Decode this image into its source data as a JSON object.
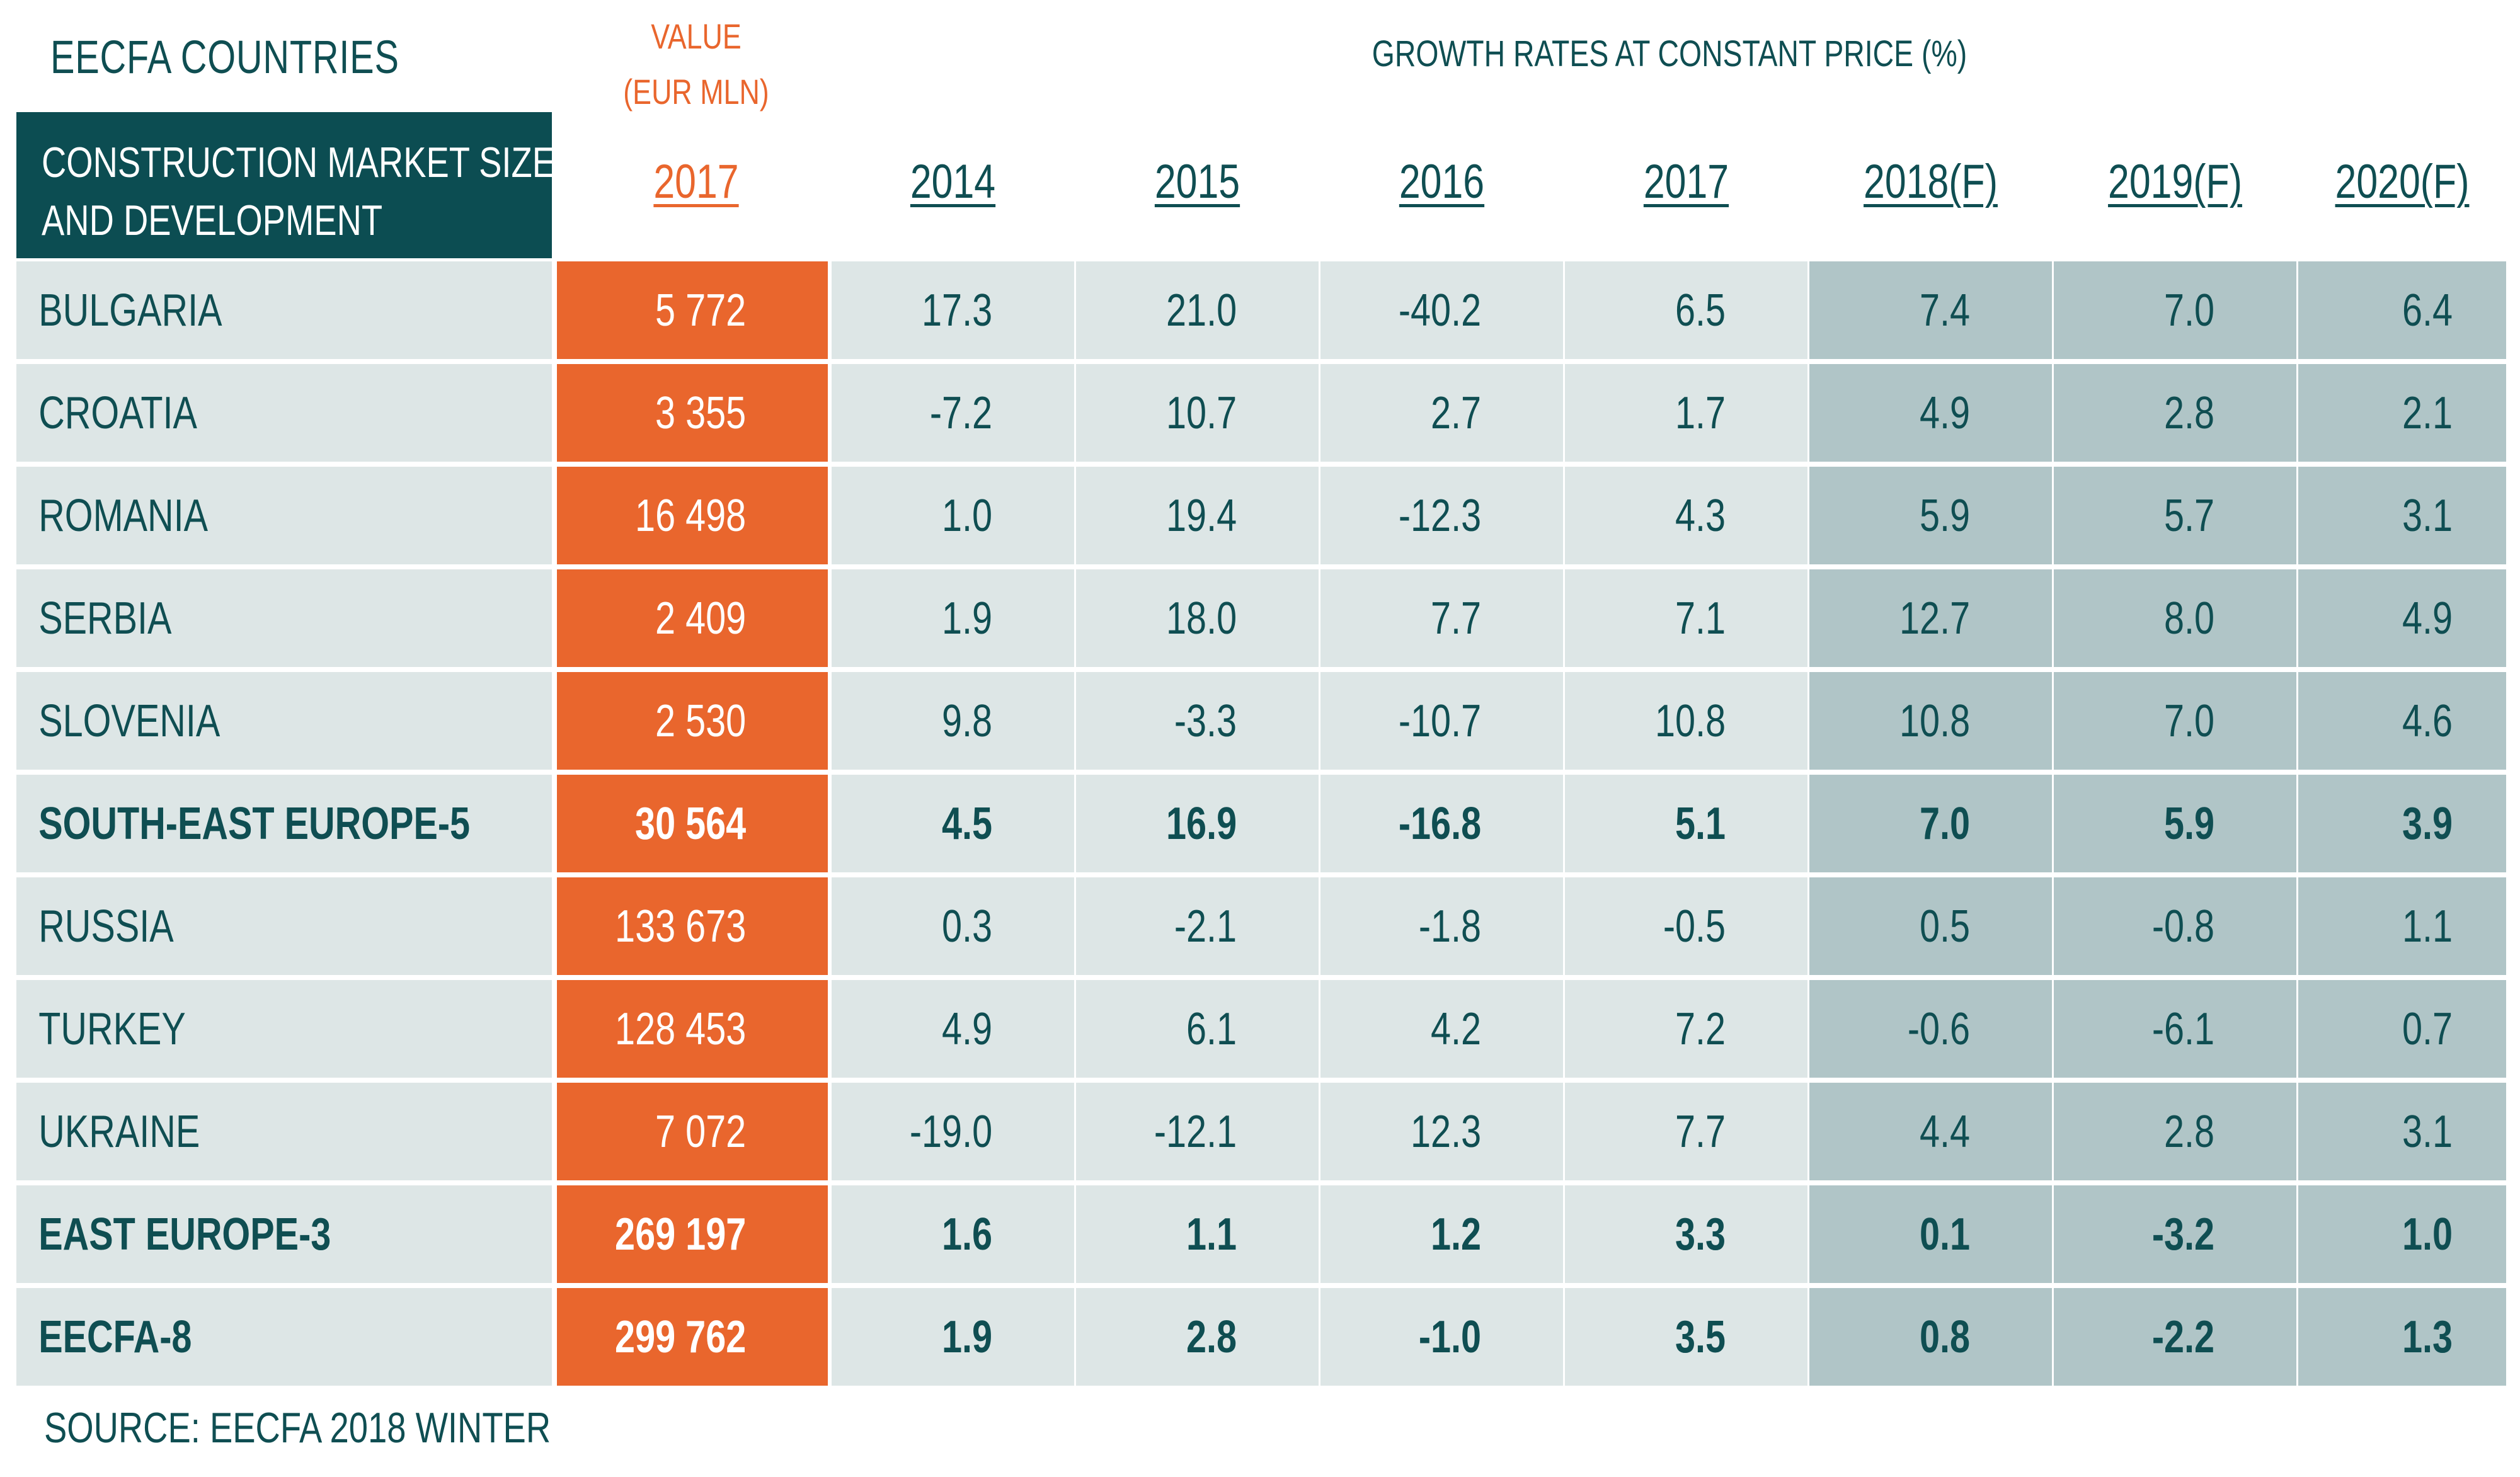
{
  "header": {
    "countries_label": "EECFA COUNTRIES",
    "value_label_line1": "VALUE",
    "value_label_line2": "(EUR MLN)",
    "growth_label": "GROWTH RATES AT CONSTANT PRICE (%)",
    "title_line1": "CONSTRUCTION MARKET SIZE",
    "title_line2": "AND DEVELOPMENT",
    "value_year": "2017"
  },
  "source": "SOURCE: EECFA 2018 WINTER",
  "colors": {
    "teal_dark": "#0c4d52",
    "orange": "#e9662d",
    "cell_light": "#dde6e6",
    "cell_forecast": "#b0c5c7",
    "text": "#0f4e52"
  },
  "chart_data": {
    "type": "table",
    "columns": [
      "2014",
      "2015",
      "2016",
      "2017",
      "2018(F)",
      "2019(F)",
      "2020(F)"
    ],
    "rows": [
      {
        "name": "BULGARIA",
        "value": "5 772",
        "growth": [
          "17.3",
          "21.0",
          "-40.2",
          "6.5",
          "7.4",
          "7.0",
          "6.4"
        ],
        "bold": false
      },
      {
        "name": "CROATIA",
        "value": "3 355",
        "growth": [
          "-7.2",
          "10.7",
          "2.7",
          "1.7",
          "4.9",
          "2.8",
          "2.1"
        ],
        "bold": false
      },
      {
        "name": "ROMANIA",
        "value": "16 498",
        "growth": [
          "1.0",
          "19.4",
          "-12.3",
          "4.3",
          "5.9",
          "5.7",
          "3.1"
        ],
        "bold": false
      },
      {
        "name": "SERBIA",
        "value": "2 409",
        "growth": [
          "1.9",
          "18.0",
          "7.7",
          "7.1",
          "12.7",
          "8.0",
          "4.9"
        ],
        "bold": false
      },
      {
        "name": "SLOVENIA",
        "value": "2 530",
        "growth": [
          "9.8",
          "-3.3",
          "-10.7",
          "10.8",
          "10.8",
          "7.0",
          "4.6"
        ],
        "bold": false
      },
      {
        "name": "SOUTH-EAST EUROPE-5",
        "value": "30 564",
        "growth": [
          "4.5",
          "16.9",
          "-16.8",
          "5.1",
          "7.0",
          "5.9",
          "3.9"
        ],
        "bold": true
      },
      {
        "name": "RUSSIA",
        "value": "133 673",
        "growth": [
          "0.3",
          "-2.1",
          "-1.8",
          "-0.5",
          "0.5",
          "-0.8",
          "1.1"
        ],
        "bold": false
      },
      {
        "name": "TURKEY",
        "value": "128 453",
        "growth": [
          "4.9",
          "6.1",
          "4.2",
          "7.2",
          "-0.6",
          "-6.1",
          "0.7"
        ],
        "bold": false
      },
      {
        "name": "UKRAINE",
        "value": "7 072",
        "growth": [
          "-19.0",
          "-12.1",
          "12.3",
          "7.7",
          "4.4",
          "2.8",
          "3.1"
        ],
        "bold": false
      },
      {
        "name": "EAST EUROPE-3",
        "value": "269 197",
        "growth": [
          "1.6",
          "1.1",
          "1.2",
          "3.3",
          "0.1",
          "-3.2",
          "1.0"
        ],
        "bold": true
      },
      {
        "name": "EECFA-8",
        "value": "299 762",
        "growth": [
          "1.9",
          "2.8",
          "-1.0",
          "3.5",
          "0.8",
          "-2.2",
          "1.3"
        ],
        "bold": true
      }
    ]
  }
}
